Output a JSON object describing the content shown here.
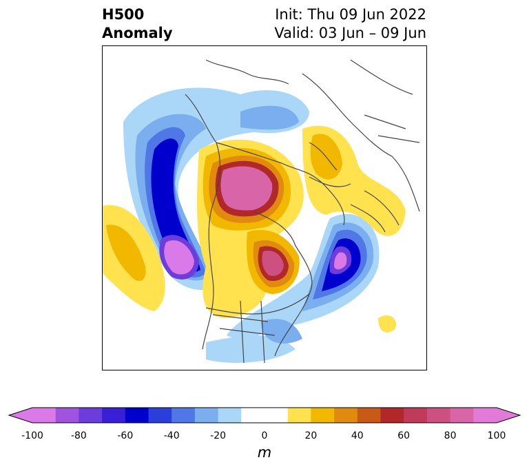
{
  "title": {
    "left_line1": "H500",
    "left_line2": "Anomaly",
    "right_line1": "Init: Thu 09 Jun 2022",
    "right_line2": "Valid: 03 Jun – 09 Jun"
  },
  "colorbar": {
    "unit": "m",
    "ticks": [
      "-100",
      "-80",
      "-60",
      "-40",
      "-20",
      "0",
      "20",
      "40",
      "60",
      "80",
      "100"
    ],
    "levels": [
      -100,
      -90,
      -80,
      -70,
      -60,
      -50,
      -40,
      -30,
      -20,
      -10,
      10,
      20,
      30,
      40,
      50,
      60,
      70,
      80,
      90,
      100
    ],
    "colors": [
      "#d97ae8",
      "#9f54e0",
      "#6d3ddb",
      "#3a1fd6",
      "#0000cc",
      "#2a3fd9",
      "#4f78e6",
      "#7aaeee",
      "#aad7f7",
      "#ffffff",
      "#ffe24d",
      "#f2b800",
      "#e08a10",
      "#c85a18",
      "#b02828",
      "#c03a5a",
      "#cc5080",
      "#d765a8",
      "#e27ad8"
    ],
    "under_color": "#d97ae8",
    "over_color": "#e27ad8"
  }
}
